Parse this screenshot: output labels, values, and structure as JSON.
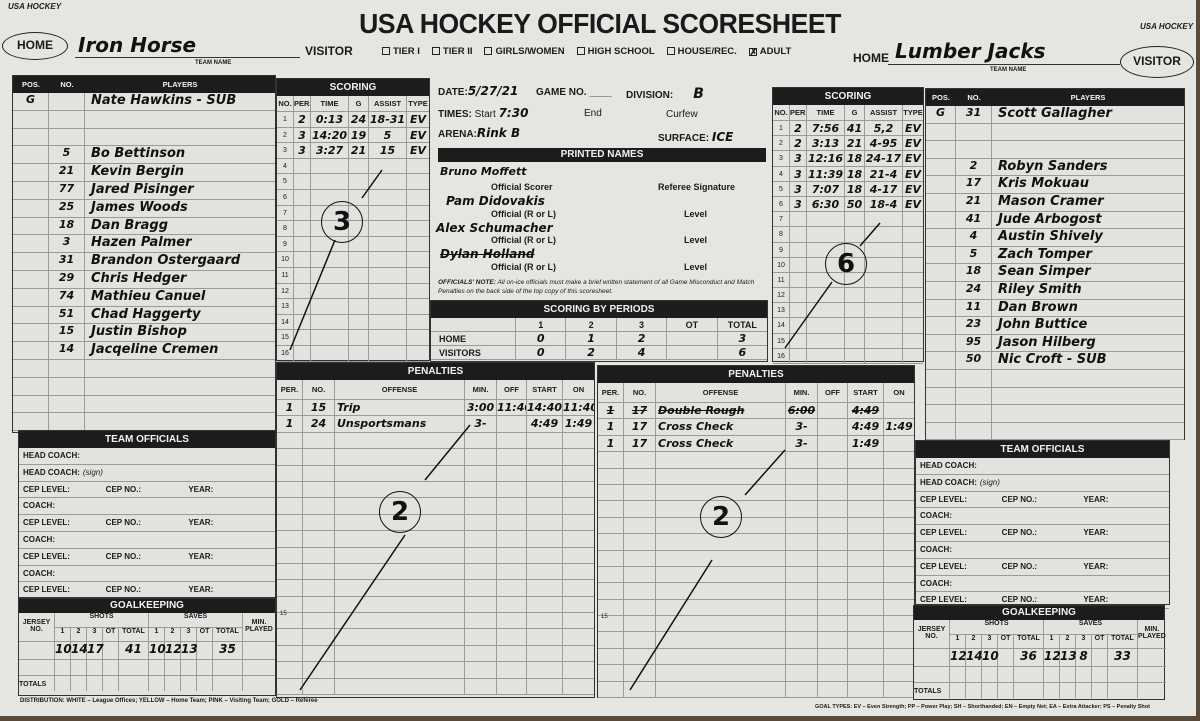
{
  "header": {
    "title": "USA HOCKEY OFFICIAL SCORESHEET",
    "logo_text": "USA HOCKEY",
    "home_oval": "HOME",
    "visitor_oval": "VISITOR",
    "visitor_label": "VISITOR",
    "home_label": "HOME",
    "team_name_caption": "TEAM NAME",
    "left_team": "Iron Horse",
    "right_team": "Lumber Jacks",
    "categories": [
      {
        "label": "TIER I",
        "checked": false
      },
      {
        "label": "TIER II",
        "checked": false
      },
      {
        "label": "GIRLS/WOMEN",
        "checked": false
      },
      {
        "label": "HIGH SCHOOL",
        "checked": false
      },
      {
        "label": "HOUSE/REC.",
        "checked": false
      },
      {
        "label": "ADULT",
        "checked": true
      }
    ]
  },
  "left_roster": {
    "headers": {
      "pos": "POS.",
      "no": "NO.",
      "players": "PLAYERS"
    },
    "players": [
      {
        "pos": "G",
        "no": "",
        "name": "Nate Hawkins - SUB"
      },
      {
        "pos": "",
        "no": "",
        "name": ""
      },
      {
        "pos": "",
        "no": "",
        "name": ""
      },
      {
        "pos": "",
        "no": "5",
        "name": "Bo Bettinson"
      },
      {
        "pos": "",
        "no": "21",
        "name": "Kevin Bergin"
      },
      {
        "pos": "",
        "no": "77",
        "name": "Jared Pisinger"
      },
      {
        "pos": "",
        "no": "25",
        "name": "James Woods"
      },
      {
        "pos": "",
        "no": "18",
        "name": "Dan Bragg"
      },
      {
        "pos": "",
        "no": "3",
        "name": "Hazen Palmer"
      },
      {
        "pos": "",
        "no": "31",
        "name": "Brandon Ostergaard"
      },
      {
        "pos": "",
        "no": "29",
        "name": "Chris Hedger"
      },
      {
        "pos": "",
        "no": "74",
        "name": "Mathieu Canuel"
      },
      {
        "pos": "",
        "no": "51",
        "name": "Chad Haggerty"
      },
      {
        "pos": "",
        "no": "15",
        "name": "Justin Bishop"
      },
      {
        "pos": "",
        "no": "14",
        "name": "Jacqeline Cremen"
      },
      {
        "pos": "",
        "no": "",
        "name": ""
      },
      {
        "pos": "",
        "no": "",
        "name": ""
      },
      {
        "pos": "",
        "no": "",
        "name": ""
      },
      {
        "pos": "",
        "no": "",
        "name": ""
      }
    ]
  },
  "right_roster": {
    "headers": {
      "pos": "POS.",
      "no": "NO.",
      "players": "PLAYERS"
    },
    "players": [
      {
        "pos": "G",
        "no": "31",
        "name": "Scott Gallagher"
      },
      {
        "pos": "",
        "no": "",
        "name": ""
      },
      {
        "pos": "",
        "no": "",
        "name": ""
      },
      {
        "pos": "",
        "no": "2",
        "name": "Robyn Sanders"
      },
      {
        "pos": "",
        "no": "17",
        "name": "Kris Mokuau"
      },
      {
        "pos": "",
        "no": "21",
        "name": "Mason Cramer"
      },
      {
        "pos": "",
        "no": "41",
        "name": "Jude Arbogost"
      },
      {
        "pos": "",
        "no": "4",
        "name": "Austin Shively"
      },
      {
        "pos": "",
        "no": "5",
        "name": "Zach Tomper"
      },
      {
        "pos": "",
        "no": "18",
        "name": "Sean Simper"
      },
      {
        "pos": "",
        "no": "24",
        "name": "Riley Smith"
      },
      {
        "pos": "",
        "no": "11",
        "name": "Dan Brown"
      },
      {
        "pos": "",
        "no": "23",
        "name": "John Buttice"
      },
      {
        "pos": "",
        "no": "95",
        "name": "Jason Hilberg"
      },
      {
        "pos": "",
        "no": "50",
        "name": "Nic Croft - SUB"
      },
      {
        "pos": "",
        "no": "",
        "name": ""
      },
      {
        "pos": "",
        "no": "",
        "name": ""
      },
      {
        "pos": "",
        "no": "",
        "name": ""
      },
      {
        "pos": "",
        "no": "",
        "name": ""
      }
    ]
  },
  "left_scoring": {
    "title": "SCORING",
    "headers": {
      "no": "NO.",
      "per": "PER.",
      "time": "TIME",
      "g": "G",
      "assist": "ASSIST",
      "type": "TYPE"
    },
    "circled_total": "3",
    "rows": [
      {
        "no": "1",
        "per": "2",
        "time": "0:13",
        "g": "24",
        "assist": "18-31",
        "type": "EV"
      },
      {
        "no": "2",
        "per": "3",
        "time": "14:20",
        "g": "19",
        "assist": "5",
        "type": "EV"
      },
      {
        "no": "3",
        "per": "3",
        "time": "3:27",
        "g": "21",
        "assist": "15",
        "type": "EV"
      },
      {
        "no": "4"
      },
      {
        "no": "5"
      },
      {
        "no": "6"
      },
      {
        "no": "7"
      },
      {
        "no": "8"
      },
      {
        "no": "9"
      },
      {
        "no": "10"
      },
      {
        "no": "11"
      },
      {
        "no": "12"
      },
      {
        "no": "13"
      },
      {
        "no": "14"
      },
      {
        "no": "15"
      },
      {
        "no": "16"
      }
    ]
  },
  "right_scoring": {
    "title": "SCORING",
    "headers": {
      "no": "NO.",
      "per": "PER.",
      "time": "TIME",
      "g": "G",
      "assist": "ASSIST",
      "type": "TYPE"
    },
    "circled_total": "6",
    "rows": [
      {
        "no": "1",
        "per": "2",
        "time": "7:56",
        "g": "41",
        "assist": "5,2",
        "type": "EV"
      },
      {
        "no": "2",
        "per": "2",
        "time": "3:13",
        "g": "21",
        "assist": "4-95",
        "type": "EV"
      },
      {
        "no": "3",
        "per": "3",
        "time": "12:16",
        "g": "18",
        "assist": "24-17",
        "type": "EV"
      },
      {
        "no": "4",
        "per": "3",
        "time": "11:39",
        "g": "18",
        "assist": "21-4",
        "type": "EV"
      },
      {
        "no": "5",
        "per": "3",
        "time": "7:07",
        "g": "18",
        "assist": "4-17",
        "type": "EV"
      },
      {
        "no": "6",
        "per": "3",
        "time": "6:30",
        "g": "50",
        "assist": "18-4",
        "type": "EV"
      },
      {
        "no": "7"
      },
      {
        "no": "8"
      },
      {
        "no": "9"
      },
      {
        "no": "10"
      },
      {
        "no": "11"
      },
      {
        "no": "12"
      },
      {
        "no": "13"
      },
      {
        "no": "14"
      },
      {
        "no": "15"
      },
      {
        "no": "16"
      }
    ]
  },
  "game_info": {
    "date_label": "DATE:",
    "date": "5/27/21",
    "game_no_label": "GAME NO.",
    "game_no": "",
    "division_label": "DIVISION:",
    "division": "B",
    "times_label": "TIMES:",
    "start_label": "Start",
    "start": "7:30",
    "end_label": "End",
    "end": "",
    "curfew_label": "Curfew",
    "curfew": "",
    "arena_label": "ARENA:",
    "arena": "Rink B",
    "surface_label": "SURFACE:",
    "surface": "ICE"
  },
  "printed_names": {
    "title": "PRINTED NAMES",
    "scorer": "Bruno Moffett",
    "scorer_label": "Official Scorer",
    "referee_sig_label": "Referee Signature",
    "official1": "Pam Didovakis",
    "official2": "Alex Schumacher",
    "official3": "Dylan Holland",
    "official_label": "Official (R or L)",
    "level_label": "Level",
    "note_bold": "OFFICIALS' NOTE:",
    "note": "All on-ice officials must make a brief written statement of all Game Misconduct and Match Penalties on the back side of the top copy of this scoresheet."
  },
  "scoring_by_periods": {
    "title": "SCORING BY PERIODS",
    "columns": [
      "1",
      "2",
      "3",
      "OT",
      "TOTAL"
    ],
    "rows": [
      {
        "team": "HOME",
        "values": [
          "0",
          "1",
          "2",
          "",
          "3"
        ]
      },
      {
        "team": "VISITORS",
        "values": [
          "0",
          "2",
          "4",
          "",
          "6"
        ]
      }
    ]
  },
  "left_penalties": {
    "title": "PENALTIES",
    "headers": {
      "per": "PER.",
      "no": "NO.",
      "offense": "OFFENSE",
      "min": "MIN.",
      "off": "OFF",
      "start": "START",
      "on": "ON"
    },
    "circled_total": "2",
    "row15": "15",
    "rows": [
      {
        "per": "1",
        "no": "15",
        "offense": "Trip",
        "min": "3:00",
        "off": "11:40",
        "start": "14:40",
        "on": "11:40"
      },
      {
        "per": "1",
        "no": "24",
        "offense": "Unsportsmans",
        "min": "3-",
        "off": "",
        "start": "4:49",
        "on": "1:49"
      }
    ]
  },
  "right_penalties": {
    "title": "PENALTIES",
    "headers": {
      "per": "PER.",
      "no": "NO.",
      "offense": "OFFENSE",
      "min": "MIN.",
      "off": "OFF",
      "start": "START",
      "on": "ON"
    },
    "circled_total": "2",
    "row15": "15",
    "rows": [
      {
        "per": "1",
        "no": "17",
        "offense": "Double Rough",
        "min": "6:00",
        "off": "",
        "start": "4:49",
        "on": "",
        "struck": true
      },
      {
        "per": "1",
        "no": "17",
        "offense": "Cross Check",
        "min": "3-",
        "off": "",
        "start": "4:49",
        "on": "1:49"
      },
      {
        "per": "1",
        "no": "17",
        "offense": "Cross Check",
        "min": "3-",
        "off": "",
        "start": "1:49",
        "on": ""
      }
    ]
  },
  "team_officials": {
    "title": "TEAM OFFICIALS",
    "head_coach": "HEAD COACH:",
    "head_coach_sign": "HEAD COACH:",
    "sign": "(sign)",
    "coach": "COACH:",
    "cep_level": "CEP LEVEL:",
    "cep_no": "CEP NO.:",
    "year": "YEAR:"
  },
  "goalkeeping": {
    "title": "GOALKEEPING",
    "jersey": "JERSEY NO.",
    "shots": "SHOTS",
    "saves": "SAVES",
    "min_played": "MIN. PLAYED",
    "cols": [
      "1",
      "2",
      "3",
      "OT",
      "TOTAL"
    ],
    "totals": "TOTALS",
    "left": {
      "shots": [
        "10",
        "14",
        "17",
        "",
        "41"
      ],
      "saves": [
        "10",
        "12",
        "13",
        "",
        "35"
      ]
    },
    "right": {
      "shots": [
        "12",
        "14",
        "10",
        "",
        "36"
      ],
      "saves": [
        "12",
        "13",
        "8",
        "",
        "33"
      ]
    }
  },
  "footer": {
    "distribution": "DISTRIBUTION: WHITE – League Offices; YELLOW – Home Team; PINK – Visiting Team; GOLD – Referee",
    "goal_types": "GOAL TYPES: EV – Even Strength; PP – Power Play; SH – Shorthanded; EN – Empty Net; EA – Extra Attacker; PS – Penalty Shot"
  }
}
